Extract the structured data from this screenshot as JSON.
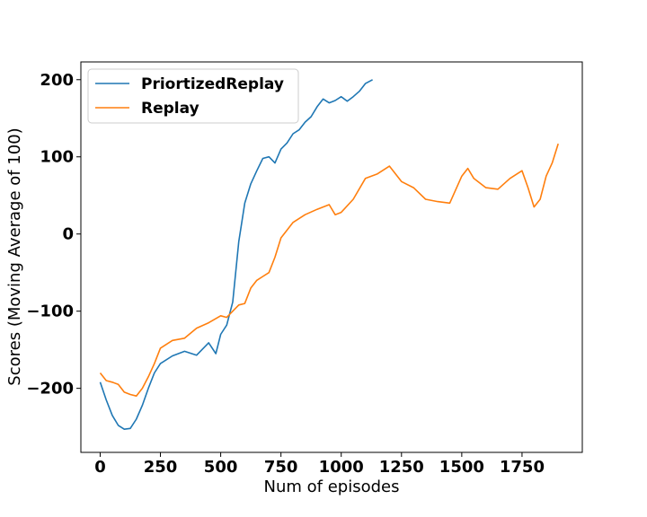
{
  "chart_data": {
    "type": "line",
    "xlabel": "Num of episodes",
    "ylabel": "Scores (Moving Average of 100)",
    "xlim": [
      -80,
      2000
    ],
    "ylim": [
      -283,
      223
    ],
    "xticks": [
      0,
      250,
      500,
      750,
      1000,
      1250,
      1500,
      1750
    ],
    "xtick_labels": [
      "0",
      "250",
      "500",
      "750",
      "1000",
      "1250",
      "1500",
      "1750"
    ],
    "yticks": [
      -200,
      -100,
      0,
      100,
      200
    ],
    "ytick_labels": [
      "−200",
      "−100",
      "0",
      "100",
      "200"
    ],
    "grid": false,
    "legend_position": "top-left",
    "series": [
      {
        "name": "PriortizedReplay",
        "color": "#1f77b4",
        "x": [
          0,
          25,
          50,
          75,
          100,
          125,
          150,
          175,
          200,
          225,
          250,
          300,
          350,
          400,
          450,
          480,
          500,
          525,
          550,
          575,
          600,
          625,
          650,
          675,
          700,
          725,
          750,
          775,
          800,
          825,
          850,
          875,
          900,
          925,
          950,
          975,
          1000,
          1025,
          1050,
          1075,
          1100,
          1130
        ],
        "y": [
          -192,
          -215,
          -235,
          -248,
          -253,
          -252,
          -240,
          -222,
          -200,
          -180,
          -168,
          -158,
          -152,
          -157,
          -141,
          -155,
          -130,
          -118,
          -88,
          -10,
          40,
          65,
          82,
          98,
          100,
          92,
          110,
          118,
          130,
          135,
          145,
          152,
          165,
          175,
          170,
          173,
          178,
          172,
          178,
          185,
          195,
          200
        ]
      },
      {
        "name": "Replay",
        "color": "#ff7f0e",
        "x": [
          0,
          25,
          50,
          75,
          100,
          125,
          150,
          175,
          200,
          225,
          250,
          300,
          350,
          400,
          450,
          500,
          525,
          550,
          575,
          600,
          625,
          650,
          675,
          700,
          725,
          750,
          800,
          850,
          900,
          950,
          975,
          1000,
          1050,
          1100,
          1150,
          1200,
          1250,
          1300,
          1350,
          1400,
          1450,
          1500,
          1525,
          1550,
          1600,
          1650,
          1700,
          1750,
          1775,
          1800,
          1825,
          1850,
          1875,
          1900
        ],
        "y": [
          -180,
          -190,
          -192,
          -195,
          -205,
          -208,
          -210,
          -200,
          -185,
          -168,
          -148,
          -138,
          -135,
          -122,
          -115,
          -106,
          -108,
          -100,
          -92,
          -90,
          -70,
          -60,
          -55,
          -50,
          -30,
          -5,
          15,
          25,
          32,
          38,
          25,
          28,
          45,
          72,
          78,
          88,
          68,
          60,
          45,
          42,
          40,
          75,
          85,
          72,
          60,
          58,
          72,
          82,
          60,
          35,
          45,
          75,
          92,
          117
        ]
      }
    ]
  }
}
